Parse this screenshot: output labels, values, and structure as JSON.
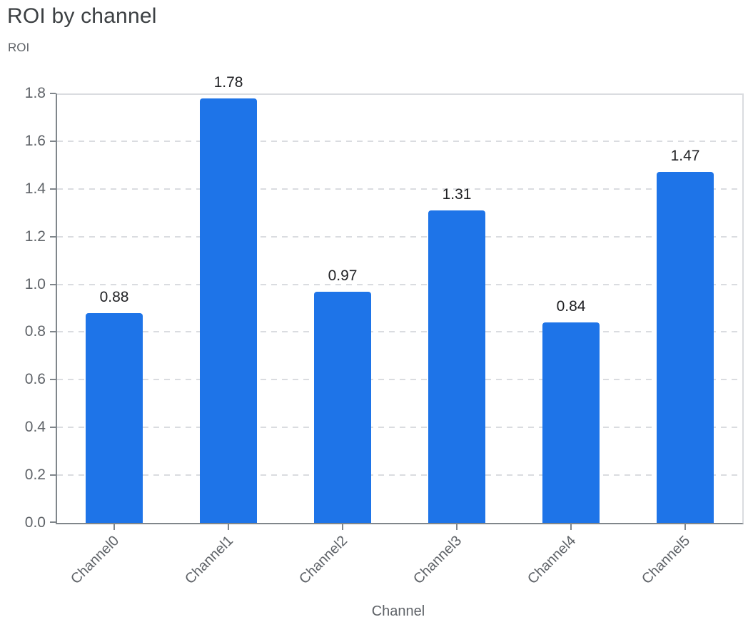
{
  "chart_data": {
    "type": "bar",
    "title": "ROI by channel",
    "y_axis_title": "ROI",
    "xlabel": "Channel",
    "ylabel": "ROI",
    "categories": [
      "Channel0",
      "Channel1",
      "Channel2",
      "Channel3",
      "Channel4",
      "Channel5"
    ],
    "values": [
      0.88,
      1.78,
      0.97,
      1.31,
      0.84,
      1.47
    ],
    "value_labels": [
      "0.88",
      "1.78",
      "0.97",
      "1.31",
      "0.84",
      "1.47"
    ],
    "ylim": [
      0,
      1.8
    ],
    "yticks": [
      0.0,
      0.2,
      0.4,
      0.6,
      0.8,
      1.0,
      1.2,
      1.4,
      1.6,
      1.8
    ],
    "ytick_labels": [
      "0.0",
      "0.2",
      "0.4",
      "0.6",
      "0.8",
      "1.0",
      "1.2",
      "1.4",
      "1.6",
      "1.8"
    ],
    "grid": "horizontal-dashed",
    "legend": "none",
    "bar_corner_radius_px": 4,
    "colors": {
      "bar": "#1e74e8",
      "title": "#3c4043",
      "axis_title": "#5f6368",
      "tick_label": "#5f6368",
      "value_label": "#202124",
      "gridline": "#dadce0",
      "axis_line": "#80868b",
      "background": "#ffffff"
    }
  }
}
